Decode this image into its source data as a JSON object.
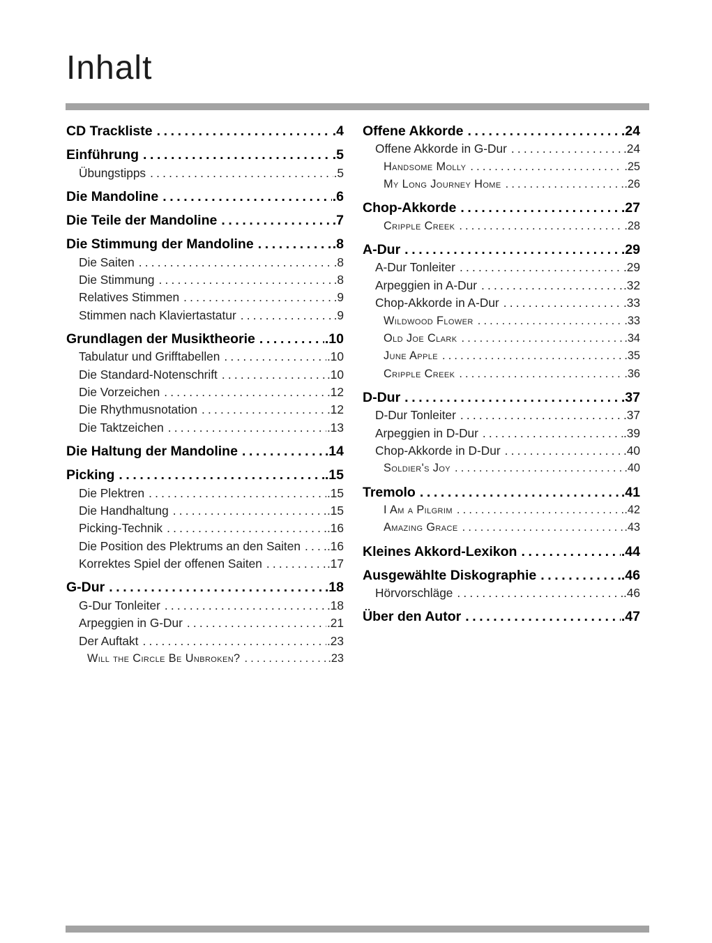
{
  "page": {
    "title": "Inhalt",
    "rule_color": "#a3a3a3"
  },
  "toc": {
    "columns": {
      "left": [
        {
          "style": "h1",
          "label": "CD Trackliste",
          "page": "4"
        },
        {
          "style": "h1",
          "label": "Einführung",
          "page": "5"
        },
        {
          "style": "sub",
          "label": "Übungstipps",
          "page": "5"
        },
        {
          "style": "h1",
          "label": "Die Mandoline",
          "page": "6"
        },
        {
          "style": "h1",
          "label": "Die Teile der Mandoline",
          "page": "7"
        },
        {
          "style": "h1",
          "label": "Die Stimmung der Mandoline",
          "page": "8"
        },
        {
          "style": "sub",
          "label": "Die Saiten",
          "page": "8"
        },
        {
          "style": "sub",
          "label": "Die Stimmung",
          "page": "8"
        },
        {
          "style": "sub",
          "label": "Relatives Stimmen",
          "page": "9"
        },
        {
          "style": "sub",
          "label": "Stimmen nach Klaviertastatur",
          "page": "9"
        },
        {
          "style": "h1",
          "label": "Grundlagen der Musiktheorie",
          "page": "10"
        },
        {
          "style": "sub",
          "label": "Tabulatur und Grifftabellen",
          "page": "10"
        },
        {
          "style": "sub",
          "label": "Die Standard-Notenschrift",
          "page": "10"
        },
        {
          "style": "sub",
          "label": "Die Vorzeichen",
          "page": "12"
        },
        {
          "style": "sub",
          "label": "Die Rhythmusnotation",
          "page": "12"
        },
        {
          "style": "sub",
          "label": "Die Taktzeichen",
          "page": "13"
        },
        {
          "style": "h1",
          "label": "Die Haltung der Mandoline",
          "page": "14"
        },
        {
          "style": "h1",
          "label": "Picking",
          "page": "15"
        },
        {
          "style": "sub",
          "label": "Die Plektren",
          "page": "15"
        },
        {
          "style": "sub",
          "label": "Die Handhaltung",
          "page": "15"
        },
        {
          "style": "sub",
          "label": "Picking-Technik",
          "page": "16"
        },
        {
          "style": "sub",
          "label": "Die Position des Plektrums an den Saiten",
          "page": "16"
        },
        {
          "style": "sub",
          "label": "Korrektes Spiel der offenen Saiten",
          "page": "17"
        },
        {
          "style": "h1",
          "label": "G-Dur",
          "page": "18"
        },
        {
          "style": "sub",
          "label": "G-Dur Tonleiter",
          "page": "18"
        },
        {
          "style": "sub",
          "label": "Arpeggien in G-Dur",
          "page": "21"
        },
        {
          "style": "sub",
          "label": "Der Auftakt",
          "page": "23"
        },
        {
          "style": "song",
          "label": "Will the Circle Be Unbroken?",
          "page": "23"
        }
      ],
      "right": [
        {
          "style": "h1",
          "label": "Offene Akkorde",
          "page": "24"
        },
        {
          "style": "sub",
          "label": "Offene Akkorde in G-Dur",
          "page": "24"
        },
        {
          "style": "song",
          "label": "Handsome Molly",
          "page": "25"
        },
        {
          "style": "song",
          "label": "My Long Journey Home",
          "page": "26"
        },
        {
          "style": "h1",
          "label": "Chop-Akkorde",
          "page": "27"
        },
        {
          "style": "song",
          "label": "Cripple Creek",
          "page": "28"
        },
        {
          "style": "h1",
          "label": "A-Dur",
          "page": "29"
        },
        {
          "style": "sub",
          "label": "A-Dur Tonleiter",
          "page": "29"
        },
        {
          "style": "sub",
          "label": "Arpeggien in A-Dur",
          "page": "32"
        },
        {
          "style": "sub",
          "label": "Chop-Akkorde in A-Dur",
          "page": "33"
        },
        {
          "style": "song",
          "label": "Wildwood Flower",
          "page": "33"
        },
        {
          "style": "song",
          "label": "Old Joe Clark",
          "page": "34"
        },
        {
          "style": "song",
          "label": "June Apple",
          "page": "35"
        },
        {
          "style": "song",
          "label": "Cripple Creek",
          "page": "36"
        },
        {
          "style": "h1",
          "label": "D-Dur",
          "page": "37"
        },
        {
          "style": "sub",
          "label": "D-Dur Tonleiter",
          "page": "37"
        },
        {
          "style": "sub",
          "label": "Arpeggien in D-Dur",
          "page": "39"
        },
        {
          "style": "sub",
          "label": "Chop-Akkorde in D-Dur",
          "page": "40"
        },
        {
          "style": "song",
          "label": "Soldier's Joy",
          "page": "40"
        },
        {
          "style": "h1",
          "label": "Tremolo",
          "page": "41"
        },
        {
          "style": "song",
          "label": "I Am a Pilgrim",
          "page": "42"
        },
        {
          "style": "song",
          "label": "Amazing Grace",
          "page": "43"
        },
        {
          "style": "h1",
          "label": "Kleines Akkord-Lexikon",
          "page": "44"
        },
        {
          "style": "h1",
          "label": "Ausgewählte Diskographie",
          "page": "46"
        },
        {
          "style": "sub",
          "label": "Hörvorschläge",
          "page": "46"
        },
        {
          "style": "h1",
          "label": "Über den Autor",
          "page": "47"
        }
      ]
    }
  }
}
